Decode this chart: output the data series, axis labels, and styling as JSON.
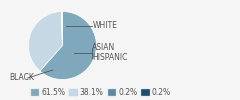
{
  "labels": [
    "BLACK",
    "WHITE",
    "ASIAN",
    "HISPANIC"
  ],
  "values": [
    61.5,
    38.1,
    0.2,
    0.2
  ],
  "colors": [
    "#7fa8bc",
    "#c5d8e3",
    "#5a8a9f",
    "#1e4d6b"
  ],
  "legend_labels": [
    "61.5%",
    "38.1%",
    "0.2%",
    "0.2%"
  ],
  "background_color": "#f5f5f5",
  "text_color": "#555555",
  "label_fontsize": 5.5,
  "legend_fontsize": 5.5
}
